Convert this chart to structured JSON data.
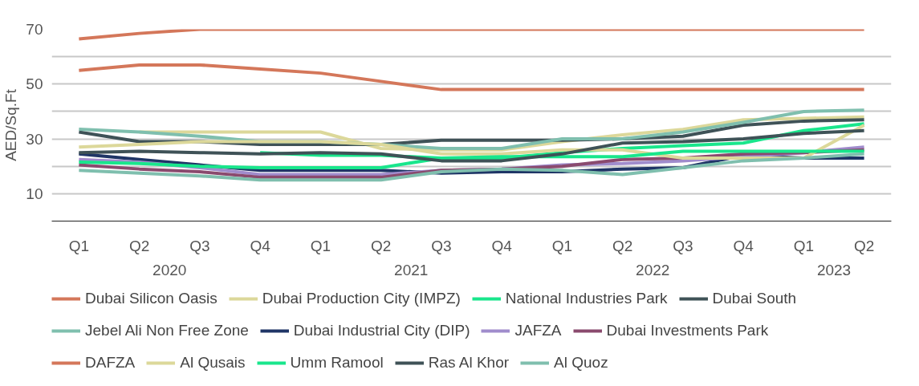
{
  "chart_data": {
    "type": "line",
    "ylabel": "AED/Sq.Ft",
    "categories": [
      "Q1",
      "Q2",
      "Q3",
      "Q4",
      "Q1",
      "Q2",
      "Q3",
      "Q4",
      "Q1",
      "Q2",
      "Q3",
      "Q4",
      "Q1",
      "Q2"
    ],
    "annotations": [
      "2020",
      "2021",
      "2022",
      "2023"
    ],
    "ylim": [
      0,
      70
    ],
    "yticks": [
      {
        "value": 0,
        "label": null
      },
      10,
      {
        "value": 20,
        "label": null
      },
      30,
      {
        "value": 40,
        "label": null
      },
      50,
      {
        "value": 60,
        "label": null
      },
      70
    ],
    "grid": "y",
    "legend": "bottom",
    "marker": "none",
    "line_style": "solid",
    "series": [
      {
        "name": "Dubai Silicon Oasis",
        "color": "#d4775a",
        "values": [
          55,
          57,
          57,
          55.5,
          54,
          51,
          48,
          48,
          48,
          48,
          48,
          48,
          48,
          48
        ]
      },
      {
        "name": "Dubai Production City (IMPZ)",
        "color": "#dcd89a",
        "values": [
          null,
          32.5,
          32.5,
          32.5,
          32.5,
          26.5,
          26,
          26,
          29,
          31.5,
          33.5,
          37,
          37.5,
          38
        ]
      },
      {
        "name": "National Industries Park",
        "color": "#19e68c",
        "values": [
          null,
          null,
          null,
          25,
          24,
          24,
          23,
          23,
          25,
          26.5,
          27.5,
          28.5,
          33,
          35.5
        ]
      },
      {
        "name": "Dubai South",
        "color": "#3f5257",
        "values": [
          32.5,
          29,
          29,
          28,
          28,
          28,
          29.5,
          29.5,
          29.5,
          30,
          31,
          35,
          36.5,
          37
        ]
      },
      {
        "name": "Jebel Ali Non Free Zone",
        "color": "#7fbfae",
        "values": [
          33.5,
          32.5,
          31,
          29,
          29,
          28,
          26.5,
          26.5,
          30,
          30,
          32.5,
          36,
          40,
          40.5
        ]
      },
      {
        "name": "Dubai Industrial City (DIP)",
        "color": "#1f3566",
        "values": [
          24.5,
          22.5,
          20.5,
          18.5,
          18.5,
          18.5,
          17.5,
          18,
          18,
          19,
          19.5,
          24,
          23,
          23
        ]
      },
      {
        "name": "JAFZA",
        "color": "#a08ccc",
        "values": [
          22.5,
          21.5,
          19.5,
          17,
          17,
          17,
          18.5,
          19,
          20.5,
          21,
          22,
          23.5,
          25,
          27
        ]
      },
      {
        "name": "Dubai Investments Park",
        "color": "#8a4a6e",
        "values": [
          20.5,
          19,
          18,
          16,
          16,
          16,
          18.5,
          19,
          20,
          22.5,
          23,
          24.5,
          25,
          26
        ]
      },
      {
        "name": "DAFZA",
        "color": "#d4775a",
        "values": [
          66.5,
          68.5,
          70,
          70,
          70,
          70,
          70,
          70,
          70,
          70,
          70,
          70,
          70,
          70
        ]
      },
      {
        "name": "Al Qusais",
        "color": "#dcd89a",
        "values": [
          27,
          28,
          29,
          29,
          29,
          28,
          24.5,
          24.5,
          26,
          26,
          23,
          23,
          23,
          35
        ]
      },
      {
        "name": "Umm Ramool",
        "color": "#19e68c",
        "values": [
          21.5,
          21,
          20,
          19.5,
          19.5,
          19.5,
          23,
          23.5,
          23.5,
          23.5,
          25.5,
          25.5,
          25.5,
          25.5
        ]
      },
      {
        "name": "Ras Al Khor",
        "color": "#3f5257",
        "values": [
          25,
          25.5,
          25,
          24.5,
          25,
          24.5,
          22,
          22,
          24.5,
          28.5,
          29,
          30,
          32,
          33
        ]
      },
      {
        "name": "Al Quoz",
        "color": "#7fbfae",
        "values": [
          18.5,
          17.5,
          16.5,
          15,
          15,
          15,
          18,
          19,
          18.5,
          17,
          19.5,
          22,
          23,
          24.5
        ]
      }
    ]
  }
}
